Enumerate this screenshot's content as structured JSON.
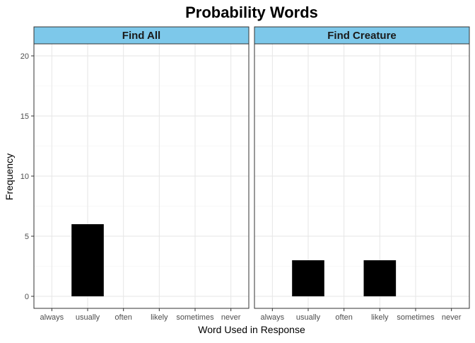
{
  "chart_data": {
    "type": "bar",
    "title": "Probability Words",
    "xlabel": "Word Used in Response",
    "ylabel": "Frequency",
    "categories": [
      "always",
      "usually",
      "often",
      "likely",
      "sometimes",
      "never"
    ],
    "ylim": [
      -1,
      21
    ],
    "yticks": [
      0,
      5,
      10,
      15,
      20
    ],
    "grid": true,
    "bar_color": "#000000",
    "strip_color": "#7dc8ea",
    "panels": [
      {
        "name": "Find All",
        "values": [
          0,
          6,
          0,
          0,
          0,
          0
        ]
      },
      {
        "name": "Find Creature",
        "values": [
          0,
          3,
          0,
          3,
          0,
          0
        ]
      }
    ]
  }
}
